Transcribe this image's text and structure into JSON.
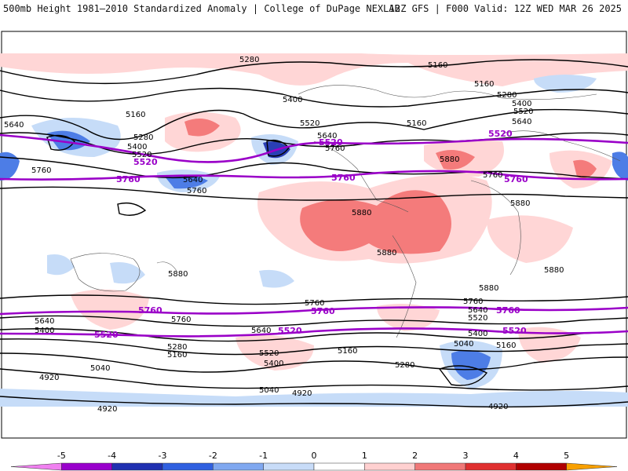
{
  "header": {
    "left_title": "500mb Height 1981—2010 Standardized Anomaly | College of DuPage NEXLAB",
    "right_title": "12Z GFS | F000 Valid: 12Z WED MAR 26 2025"
  },
  "contour_labels": [
    "5280",
    "5160",
    "5400",
    "5520",
    "5640",
    "5760",
    "5880",
    "5040",
    "4920"
  ],
  "purple_labels": [
    "5520",
    "5760"
  ],
  "colorbar": {
    "ticks": [
      "-5",
      "-4",
      "-3",
      "-2",
      "-1",
      "0",
      "1",
      "2",
      "3",
      "4",
      "5"
    ],
    "colors": [
      "#f080f0",
      "#9900cc",
      "#2030b0",
      "#3060e0",
      "#80a8f0",
      "#c8dcf8",
      "#ffffff",
      "#ffd0d0",
      "#f07878",
      "#e03030",
      "#b00000",
      "#f8a000"
    ]
  },
  "colors": {
    "pos_light": "#ffd6d6",
    "pos_mid": "#f47b7b",
    "neg_light": "#c6dcf8",
    "neg_mid": "#4d7de6",
    "neg_dark": "#2a3fb5",
    "purple": "#9a00c8"
  }
}
